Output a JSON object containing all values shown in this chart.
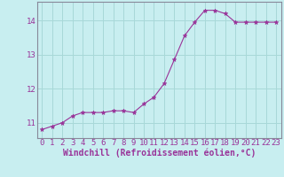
{
  "x": [
    0,
    1,
    2,
    3,
    4,
    5,
    6,
    7,
    8,
    9,
    10,
    11,
    12,
    13,
    14,
    15,
    16,
    17,
    18,
    19,
    20,
    21,
    22,
    23
  ],
  "y": [
    10.8,
    10.9,
    11.0,
    11.2,
    11.3,
    11.3,
    11.3,
    11.35,
    11.35,
    11.3,
    11.55,
    11.75,
    12.15,
    12.85,
    13.55,
    13.95,
    14.3,
    14.3,
    14.2,
    13.95,
    13.95,
    13.95,
    13.95,
    13.95
  ],
  "line_color": "#993399",
  "marker": "*",
  "marker_size": 3.5,
  "background_color": "#c8eef0",
  "grid_color": "#a8d8d8",
  "xlabel": "Windchill (Refroidissement éolien,°C)",
  "xlabel_fontsize": 7,
  "ylabel_ticks": [
    11,
    12,
    13,
    14
  ],
  "xtick_labels": [
    "0",
    "1",
    "2",
    "3",
    "4",
    "5",
    "6",
    "7",
    "8",
    "9",
    "10",
    "11",
    "12",
    "13",
    "14",
    "15",
    "16",
    "17",
    "18",
    "19",
    "20",
    "21",
    "22",
    "23"
  ],
  "ylim": [
    10.55,
    14.55
  ],
  "xlim": [
    -0.5,
    23.5
  ],
  "tick_fontsize": 6.5,
  "spine_color": "#888899",
  "font_family": "monospace"
}
